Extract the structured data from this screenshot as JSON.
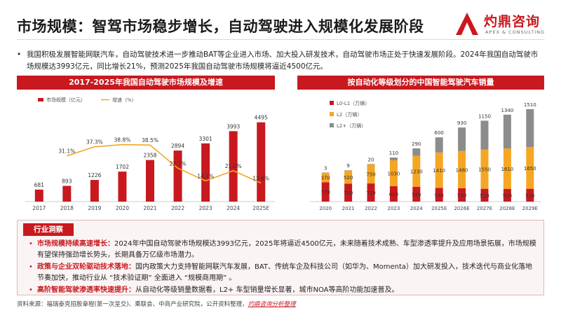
{
  "page": {
    "title": "市场规模：智驾市场稳步增长，自动驾驶进入规模化发展阶段",
    "logo_text": "灼鼎咨询",
    "logo_sub": "APEX & CONSULTING",
    "intro": "我国积极发展智能网联汽车，自动驾驶技术进一步推动BAT等企业进入市场、加大投入研发技术，自动驾驶市场正处于快速发展阶段。2024年我国自动驾驶市场规模达3993亿元，同比增长21%，预测2025年我国自动驾驶市场规模将逼近4500亿元。",
    "bullet": "•"
  },
  "left_panel": {
    "title": "2017-2025年我国自动驾驶市场规模及增速"
  },
  "right_panel": {
    "title": "按自动化等级划分的中国智能驾驶汽车销量"
  },
  "insight": {
    "tab": "行业洞察",
    "items": [
      {
        "lead": "市场规模持续高速增长：",
        "text": "2024年中国自动驾驶市场规模达3993亿元，2025年将逼近4500亿元，未来随着技术成熟、车型渗透率提升及应用场景拓展，市场规模有望保持强劲增长势头，长期具备万亿级市场潜力。"
      },
      {
        "lead": "政策与企业双轮驱动技术落地：",
        "text": "国内政策大力支持智能网联汽车发展，BAT、传统车企及科技公司（如华为、Momenta）加大研发投入，技术迭代与商业化落地节奏加快，推动行业从 “技术验证期” 全面进入 “规模商用期” 。"
      },
      {
        "lead": "高阶智能驾驶渗透率快速提升：",
        "text": "从自动化等级销量数据看，L2+ 车型销量增长显著，城市NOA等高阶功能加速普及。"
      }
    ]
  },
  "source": {
    "text": "资料来源：福瑞泰克招股章程(第一次呈交)、乘联会、中商产业研究院，公开资料整理，",
    "brand": "灼鼎咨询分析整理"
  },
  "chart_data": [
    {
      "type": "bar",
      "title": "2017-2025年我国自动驾驶市场规模及增速",
      "categories": [
        "2017",
        "2018",
        "2019",
        "2020",
        "2021",
        "2022",
        "2023",
        "2024",
        "2025E"
      ],
      "series": [
        {
          "name": "市场规模（亿元）",
          "type": "bar",
          "values": [
            681,
            893,
            1226,
            1702,
            2358,
            2894,
            3301,
            3993,
            4495
          ],
          "color": "#c8191f"
        },
        {
          "name": "增速（%）",
          "type": "line",
          "values_label": [
            "",
            "31.1%",
            "37.3%",
            "38.8%",
            "38.5%",
            "22.7%",
            "14.1%",
            "21.0%",
            "12.6%"
          ],
          "values": [
            null,
            31.1,
            37.3,
            38.8,
            38.5,
            22.7,
            14.1,
            21.0,
            12.6
          ],
          "color": "#f5a623"
        }
      ],
      "ylim_bar": [
        0,
        5000
      ],
      "ylim_line": [
        0,
        60
      ],
      "legend": "top-left"
    },
    {
      "type": "bar",
      "stacked": true,
      "title": "按自动化等级划分的中国智能驾驶汽车销量",
      "categories": [
        "2020",
        "2021",
        "2022",
        "2023",
        "2024",
        "2025E",
        "2026E",
        "2027E",
        "2028E",
        "2029E"
      ],
      "series": [
        {
          "name": "L0-L1（万辆）",
          "values": [
            770,
            710,
            720,
            610,
            590,
            540,
            530,
            510,
            500,
            510
          ],
          "color": "#c8191f"
        },
        {
          "name": "L2（万辆）",
          "values": [
            370,
            520,
            750,
            1030,
            1230,
            1410,
            1480,
            1550,
            1610,
            1650
          ],
          "color": "#f5a623"
        },
        {
          "name": "L2+（万辆）",
          "values": [
            3,
            9,
            20,
            110,
            290,
            600,
            930,
            1150,
            1340,
            1510
          ],
          "color": "#8c8c8c"
        }
      ],
      "legend": "top-left"
    }
  ],
  "colors": {
    "accent": "#c8191f",
    "orange": "#f5a623",
    "gray": "#8c8c8c"
  }
}
